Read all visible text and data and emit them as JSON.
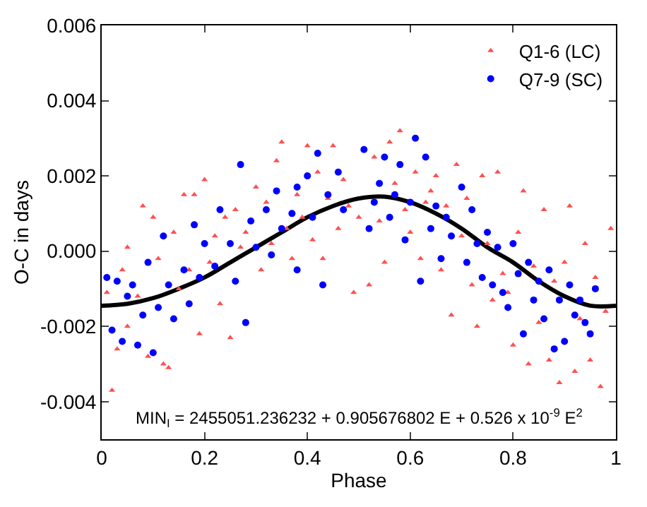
{
  "chart_data": {
    "type": "scatter",
    "xlabel": "Phase",
    "ylabel": "O-C in days",
    "xlim": [
      0,
      1
    ],
    "xticks": [
      0,
      0.2,
      0.4,
      0.6,
      0.8,
      1
    ],
    "ylim": [
      -0.005,
      0.006
    ],
    "yticks": [
      -0.004,
      -0.002,
      {
        "value": 0,
        "label": "0.000"
      },
      0.002,
      0.004,
      0.006
    ],
    "legend": "top right",
    "annotations": [
      "MIN$_{I}$ = 2455051.236232 + 0.905676802 E + 0.526 x 10$^{-9}$ E$^{2}$"
    ],
    "series": [
      {
        "name": "Q1-6 (LC)",
        "marker": "triangle",
        "color": "#ff5050",
        "x": [
          0.01,
          0.02,
          0.03,
          0.04,
          0.05,
          0.05,
          0.07,
          0.08,
          0.09,
          0.1,
          0.11,
          0.12,
          0.13,
          0.14,
          0.15,
          0.16,
          0.17,
          0.18,
          0.19,
          0.2,
          0.21,
          0.22,
          0.23,
          0.24,
          0.25,
          0.26,
          0.27,
          0.28,
          0.3,
          0.31,
          0.32,
          0.33,
          0.34,
          0.35,
          0.36,
          0.37,
          0.38,
          0.39,
          0.4,
          0.41,
          0.42,
          0.43,
          0.44,
          0.45,
          0.46,
          0.47,
          0.48,
          0.49,
          0.5,
          0.52,
          0.53,
          0.54,
          0.55,
          0.56,
          0.57,
          0.58,
          0.59,
          0.6,
          0.61,
          0.62,
          0.63,
          0.64,
          0.65,
          0.66,
          0.67,
          0.68,
          0.69,
          0.7,
          0.71,
          0.72,
          0.73,
          0.74,
          0.75,
          0.76,
          0.77,
          0.78,
          0.79,
          0.8,
          0.81,
          0.82,
          0.83,
          0.84,
          0.85,
          0.86,
          0.87,
          0.88,
          0.89,
          0.9,
          0.91,
          0.92,
          0.93,
          0.94,
          0.95,
          0.96,
          0.97,
          0.98,
          0.99
        ],
        "values": [
          -0.0011,
          -0.0037,
          -0.0026,
          -0.0005,
          0.0001,
          -0.002,
          -0.0012,
          0.0012,
          -0.0028,
          0.0009,
          -0.0002,
          -0.003,
          -0.0031,
          0.0005,
          -0.001,
          0.0015,
          -0.0005,
          0.0015,
          -0.0022,
          0.0019,
          -0.0003,
          0.0004,
          -0.0014,
          0.0009,
          -0.0023,
          0.0011,
          0.0001,
          0.0005,
          0.0017,
          -0.0005,
          0.0013,
          0.0002,
          0.0024,
          0.0029,
          0.0006,
          -0.0002,
          0.0015,
          0.0009,
          0.0028,
          0.0003,
          0.0021,
          -0.0002,
          0.0014,
          0.0028,
          0.0006,
          0.0019,
          0.0012,
          -0.0011,
          0.0009,
          -0.0009,
          0.0025,
          0.0008,
          -0.0003,
          0.0029,
          0.0018,
          0.0032,
          0.0011,
          0.0005,
          0.0021,
          -0.0002,
          0.0013,
          0.0016,
          0.002,
          -0.0005,
          0.0012,
          -0.0017,
          0.0023,
          0.0004,
          0.0014,
          -0.0009,
          -0.002,
          0.002,
          0.0002,
          -0.0013,
          0.0021,
          -0.0006,
          -0.0011,
          -0.0025,
          0.0005,
          0.0016,
          -0.003,
          -0.0004,
          -0.0019,
          0.0011,
          -0.0029,
          -0.0008,
          -0.0035,
          -0.0003,
          0.0012,
          -0.0032,
          -0.0018,
          0.0002,
          -0.0029,
          -0.0007,
          -0.0036,
          -0.0016,
          0.0006
        ]
      },
      {
        "name": "Q7-9 (SC)",
        "marker": "circle",
        "color": "#0000ff",
        "x": [
          0.01,
          0.02,
          0.03,
          0.04,
          0.05,
          0.06,
          0.07,
          0.08,
          0.09,
          0.1,
          0.11,
          0.12,
          0.13,
          0.14,
          0.16,
          0.17,
          0.18,
          0.19,
          0.2,
          0.22,
          0.23,
          0.25,
          0.26,
          0.27,
          0.28,
          0.29,
          0.3,
          0.32,
          0.33,
          0.34,
          0.35,
          0.37,
          0.38,
          0.38,
          0.4,
          0.41,
          0.42,
          0.43,
          0.44,
          0.46,
          0.47,
          0.51,
          0.52,
          0.53,
          0.54,
          0.55,
          0.56,
          0.57,
          0.58,
          0.59,
          0.6,
          0.61,
          0.62,
          0.63,
          0.64,
          0.65,
          0.66,
          0.67,
          0.68,
          0.7,
          0.71,
          0.72,
          0.73,
          0.74,
          0.75,
          0.76,
          0.77,
          0.78,
          0.79,
          0.8,
          0.81,
          0.82,
          0.83,
          0.84,
          0.85,
          0.86,
          0.87,
          0.88,
          0.89,
          0.9,
          0.91,
          0.92,
          0.93,
          0.94,
          0.95,
          0.96
        ],
        "values": [
          -0.0007,
          -0.0021,
          -0.0008,
          -0.0024,
          -0.0012,
          -0.0009,
          -0.0025,
          -0.0017,
          -0.0003,
          -0.0027,
          -0.0015,
          0.0004,
          -0.0009,
          -0.0018,
          -0.0005,
          -0.0014,
          0.0007,
          -0.0007,
          0.0002,
          -0.0004,
          0.0011,
          0.0002,
          -0.0008,
          0.0023,
          -0.0019,
          0.0008,
          0.0001,
          0.0011,
          -0.0001,
          0.0016,
          0.0006,
          0.001,
          0.0017,
          -0.0005,
          0.002,
          0.0009,
          0.0026,
          -0.0009,
          0.0015,
          0.0021,
          0.0011,
          0.0027,
          0.0006,
          0.0013,
          0.0018,
          0.0025,
          0.0009,
          0.0015,
          0.0023,
          0.0003,
          0.0013,
          0.003,
          -0.0008,
          0.0025,
          0.0006,
          0.0012,
          -0.0002,
          0.0009,
          0.0004,
          0.0017,
          -0.0003,
          0.0011,
          0.0002,
          -0.0007,
          0.0005,
          -0.0009,
          0.0001,
          -0.0011,
          -0.0015,
          0.0002,
          -0.0006,
          -0.0022,
          -0.0003,
          -0.0013,
          -0.0008,
          -0.0018,
          -0.0005,
          -0.0026,
          -0.0013,
          -0.0024,
          -0.0009,
          -0.0017,
          -0.0013,
          -0.0019,
          -0.0022,
          -0.001
        ]
      },
      {
        "type": "line",
        "marker": "none",
        "line_style": "solid",
        "color": "#000000",
        "x": [
          0,
          0.05,
          0.1,
          0.15,
          0.2,
          0.25,
          0.3,
          0.35,
          0.4,
          0.45,
          0.5,
          0.55,
          0.6,
          0.65,
          0.7,
          0.75,
          0.8,
          0.85,
          0.9,
          0.95,
          1
        ],
        "values": [
          -0.00145,
          -0.0014,
          -0.00125,
          -0.001,
          -0.0007,
          -0.0003,
          0.0001,
          0.0005,
          0.0009,
          0.0012,
          0.0014,
          0.00145,
          0.0013,
          0.001,
          0.0006,
          0.0001,
          -0.0003,
          -0.0008,
          -0.0012,
          -0.00145,
          -0.00145
        ]
      }
    ]
  }
}
